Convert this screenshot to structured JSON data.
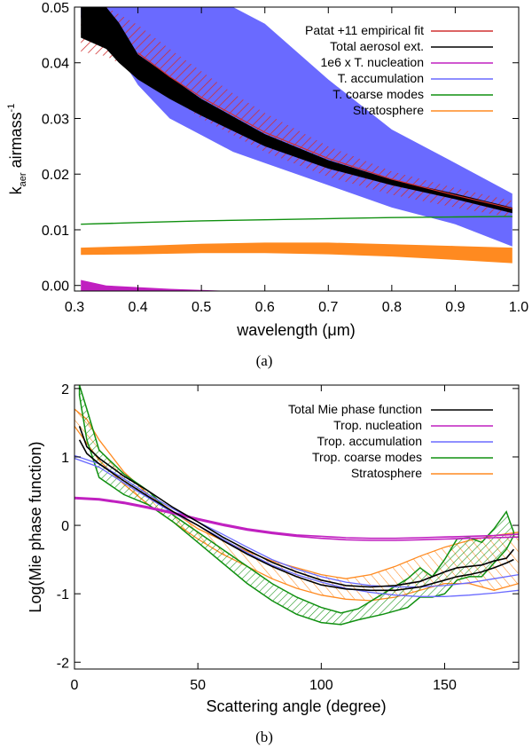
{
  "chart_data": [
    {
      "type": "area",
      "caption": "(a)",
      "xlabel": "wavelength (μm)",
      "ylabel_main": "k",
      "ylabel_sub": "aer",
      "ylabel_rest": " airmass",
      "ylabel_sup": "-1",
      "xlim": [
        0.3,
        1.0
      ],
      "ylim": [
        -0.001,
        0.05
      ],
      "xticks": [
        0.3,
        0.4,
        0.5,
        0.6,
        0.7,
        0.8,
        0.9,
        1.0
      ],
      "xtick_labels": [
        "0.3",
        "0.4",
        "0.5",
        "0.6",
        "0.7",
        "0.8",
        "0.9",
        "1.0"
      ],
      "yticks": [
        0.0,
        0.01,
        0.02,
        0.03,
        0.04,
        0.05
      ],
      "ytick_labels": [
        "0.00",
        "0.01",
        "0.02",
        "0.03",
        "0.04",
        "0.05"
      ],
      "legend": [
        "Patat +11 empirical fit",
        "Total aerosol ext.",
        "1e6 x T. nucleation",
        "T. accumulation",
        "T. coarse modes",
        "Stratosphere"
      ],
      "colors": [
        "#d03030",
        "#000000",
        "#c020c0",
        "#6a6aff",
        "#109010",
        "#ff8a20"
      ],
      "bands": [
        {
          "name": "T. accumulation",
          "x": [
            0.31,
            0.35,
            0.4,
            0.45,
            0.5,
            0.55,
            0.6,
            0.7,
            0.8,
            0.9,
            0.99
          ],
          "lower": [
            0.048,
            0.045,
            0.036,
            0.03,
            0.027,
            0.024,
            0.022,
            0.018,
            0.014,
            0.011,
            0.007
          ],
          "upper": [
            0.05,
            0.05,
            0.05,
            0.05,
            0.05,
            0.05,
            0.047,
            0.037,
            0.028,
            0.022,
            0.0165
          ]
        },
        {
          "name": "Total aerosol ext.",
          "x": [
            0.31,
            0.35,
            0.37,
            0.4,
            0.45,
            0.5,
            0.6,
            0.7,
            0.8,
            0.9,
            0.99
          ],
          "lower": [
            0.0445,
            0.0425,
            0.04,
            0.037,
            0.0335,
            0.0305,
            0.025,
            0.021,
            0.018,
            0.0155,
            0.013
          ],
          "upper": [
            0.05,
            0.05,
            0.0472,
            0.0415,
            0.0375,
            0.0335,
            0.0272,
            0.0225,
            0.019,
            0.0165,
            0.014
          ]
        },
        {
          "name": "Patat +11 empirical fit",
          "x": [
            0.31,
            0.35,
            0.4,
            0.45,
            0.5,
            0.55,
            0.6,
            0.7,
            0.8,
            0.9,
            0.99
          ],
          "lower": [
            0.042,
            0.0412,
            0.038,
            0.034,
            0.03,
            0.027,
            0.024,
            0.0195,
            0.0163,
            0.014,
            0.0122
          ],
          "upper": [
            0.05,
            0.05,
            0.0468,
            0.0425,
            0.0385,
            0.0345,
            0.031,
            0.025,
            0.0205,
            0.0175,
            0.0152
          ]
        },
        {
          "name": "Stratosphere",
          "x": [
            0.31,
            0.4,
            0.5,
            0.6,
            0.7,
            0.8,
            0.9,
            0.99
          ],
          "lower": [
            0.0055,
            0.0056,
            0.0058,
            0.0058,
            0.0056,
            0.0052,
            0.0046,
            0.004
          ],
          "upper": [
            0.0068,
            0.0071,
            0.0075,
            0.0077,
            0.0077,
            0.0074,
            0.0071,
            0.0068
          ]
        },
        {
          "name": "1e6 x T. nucleation",
          "x": [
            0.31,
            0.35,
            0.4,
            0.45,
            0.5,
            0.55
          ],
          "lower": [
            -0.001,
            -0.001,
            -0.001,
            -0.001,
            -0.001,
            -0.001
          ],
          "upper": [
            0.001,
            0.0,
            -0.0003,
            -0.0006,
            -0.0008,
            -0.001
          ]
        }
      ],
      "lines": [
        {
          "name": "T. coarse modes",
          "x": [
            0.31,
            0.4,
            0.5,
            0.6,
            0.7,
            0.8,
            0.9,
            0.99
          ],
          "y": [
            0.011,
            0.0113,
            0.0116,
            0.0118,
            0.012,
            0.0122,
            0.0123,
            0.0124
          ]
        },
        {
          "name": "Total aerosol ext.",
          "x": [
            0.4,
            0.45,
            0.5,
            0.6,
            0.7,
            0.8,
            0.9,
            0.99
          ],
          "y": [
            0.0418,
            0.0375,
            0.0338,
            0.0275,
            0.0228,
            0.0191,
            0.0162,
            0.0138
          ]
        }
      ]
    },
    {
      "type": "line",
      "caption": "(b)",
      "xlabel": "Scattering angle (degree)",
      "ylabel": "Log(Mie phase function)",
      "xlim": [
        0,
        180
      ],
      "ylim": [
        -2.1,
        2.05
      ],
      "xticks": [
        0,
        50,
        100,
        150
      ],
      "xtick_labels": [
        "0",
        "50",
        "100",
        "150"
      ],
      "yticks": [
        -2,
        -1,
        0,
        1,
        2
      ],
      "ytick_labels": [
        "-2",
        "-1",
        "0",
        "1",
        "2"
      ],
      "legend": [
        "Total Mie phase function",
        "Trop. nucleation",
        "Trop. accumulation",
        "Trop. coarse modes",
        "Stratosphere"
      ],
      "colors": [
        "#000000",
        "#c020c0",
        "#6a6aff",
        "#109010",
        "#ff8a20"
      ],
      "series": [
        {
          "name": "Stratosphere",
          "band": true,
          "x": [
            0,
            5,
            10,
            20,
            30,
            40,
            50,
            60,
            70,
            80,
            90,
            100,
            110,
            120,
            130,
            140,
            150,
            160,
            170,
            180
          ],
          "lower": [
            1.45,
            1.2,
            0.95,
            0.6,
            0.3,
            0.05,
            -0.2,
            -0.42,
            -0.6,
            -0.78,
            -0.92,
            -1.02,
            -1.08,
            -1.1,
            -1.05,
            -0.95,
            -0.85,
            -0.85,
            -0.95,
            -0.85
          ],
          "upper": [
            1.7,
            1.55,
            1.25,
            0.78,
            0.45,
            0.2,
            -0.05,
            -0.22,
            -0.38,
            -0.52,
            -0.62,
            -0.72,
            -0.78,
            -0.72,
            -0.6,
            -0.45,
            -0.32,
            -0.22,
            -0.15,
            -0.1
          ]
        },
        {
          "name": "Trop. coarse modes",
          "band": true,
          "x": [
            2,
            5,
            10,
            20,
            30,
            40,
            50,
            60,
            70,
            80,
            90,
            100,
            108,
            115,
            125,
            135,
            140,
            145,
            150,
            155,
            160,
            165,
            170,
            175,
            178
          ],
          "lower": [
            1.9,
            1.25,
            0.7,
            0.45,
            0.3,
            0.05,
            -0.25,
            -0.55,
            -0.85,
            -1.1,
            -1.3,
            -1.42,
            -1.45,
            -1.38,
            -1.3,
            -1.2,
            -1.05,
            -1.05,
            -1.0,
            -0.8,
            -0.75,
            -0.75,
            -0.55,
            -0.35,
            -0.15
          ],
          "upper": [
            2.05,
            1.7,
            1.1,
            0.75,
            0.5,
            0.15,
            -0.1,
            -0.35,
            -0.6,
            -0.85,
            -1.05,
            -1.2,
            -1.28,
            -1.22,
            -1.0,
            -0.78,
            -0.62,
            -0.75,
            -0.5,
            -0.2,
            -0.18,
            -0.25,
            -0.05,
            0.2,
            -0.1
          ]
        },
        {
          "name": "Trop. accumulation",
          "band": false,
          "x": [
            0,
            10,
            20,
            30,
            40,
            50,
            60,
            70,
            80,
            90,
            100,
            110,
            120,
            130,
            140,
            150,
            160,
            170,
            180
          ],
          "lower": [
            0.98,
            0.85,
            0.62,
            0.4,
            0.18,
            0.0,
            -0.2,
            -0.4,
            -0.58,
            -0.72,
            -0.83,
            -0.92,
            -0.98,
            -1.02,
            -1.04,
            -1.04,
            -1.02,
            -0.99,
            -0.95
          ],
          "upper": [
            1.02,
            0.9,
            0.68,
            0.45,
            0.24,
            0.05,
            -0.13,
            -0.32,
            -0.5,
            -0.64,
            -0.75,
            -0.83,
            -0.88,
            -0.9,
            -0.9,
            -0.88,
            -0.84,
            -0.78,
            -0.72
          ]
        },
        {
          "name": "Trop. nucleation",
          "band": false,
          "x": [
            0,
            10,
            20,
            30,
            40,
            50,
            60,
            70,
            80,
            90,
            100,
            110,
            120,
            130,
            140,
            150,
            160,
            170,
            180
          ],
          "lower": [
            0.39,
            0.37,
            0.32,
            0.25,
            0.17,
            0.08,
            0.0,
            -0.07,
            -0.12,
            -0.16,
            -0.19,
            -0.21,
            -0.22,
            -0.22,
            -0.21,
            -0.2,
            -0.19,
            -0.18,
            -0.17
          ],
          "upper": [
            0.41,
            0.39,
            0.34,
            0.27,
            0.19,
            0.1,
            0.02,
            -0.05,
            -0.1,
            -0.14,
            -0.16,
            -0.18,
            -0.19,
            -0.19,
            -0.18,
            -0.17,
            -0.16,
            -0.15,
            -0.13
          ]
        },
        {
          "name": "Total Mie phase function",
          "band": false,
          "x": [
            2,
            5,
            10,
            20,
            30,
            40,
            50,
            60,
            70,
            80,
            90,
            100,
            110,
            120,
            130,
            140,
            145,
            150,
            155,
            160,
            165,
            170,
            175,
            178
          ],
          "lower": [
            1.25,
            1.05,
            0.9,
            0.65,
            0.42,
            0.2,
            0.0,
            -0.22,
            -0.42,
            -0.6,
            -0.75,
            -0.87,
            -0.93,
            -0.95,
            -0.95,
            -0.9,
            -0.85,
            -0.8,
            -0.75,
            -0.72,
            -0.68,
            -0.62,
            -0.55,
            -0.5
          ],
          "upper": [
            1.45,
            1.15,
            0.98,
            0.72,
            0.5,
            0.26,
            0.05,
            -0.17,
            -0.36,
            -0.54,
            -0.68,
            -0.8,
            -0.88,
            -0.9,
            -0.88,
            -0.82,
            -0.75,
            -0.68,
            -0.62,
            -0.6,
            -0.58,
            -0.52,
            -0.48,
            -0.35
          ]
        }
      ]
    }
  ]
}
